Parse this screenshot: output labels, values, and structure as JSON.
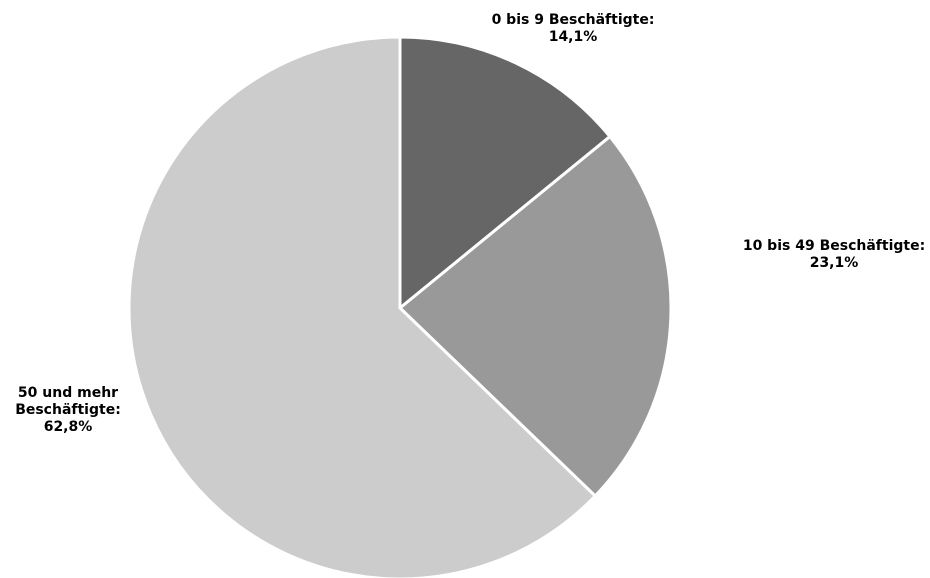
{
  "chart_data": {
    "type": "pie",
    "slices": [
      {
        "label_lines": [
          "0 bis 9 Beschäftigte:",
          "14,1%"
        ],
        "value": 14.1,
        "color": "#666666"
      },
      {
        "label_lines": [
          "10 bis 49 Beschäftigte:",
          "23,1%"
        ],
        "value": 23.1,
        "color": "#999999"
      },
      {
        "label_lines": [
          "50 und mehr",
          "Beschäftigte:",
          "62,8%"
        ],
        "value": 62.8,
        "color": "#cccccc"
      }
    ],
    "start_angle": "12 o'clock",
    "direction": "clockwise"
  }
}
